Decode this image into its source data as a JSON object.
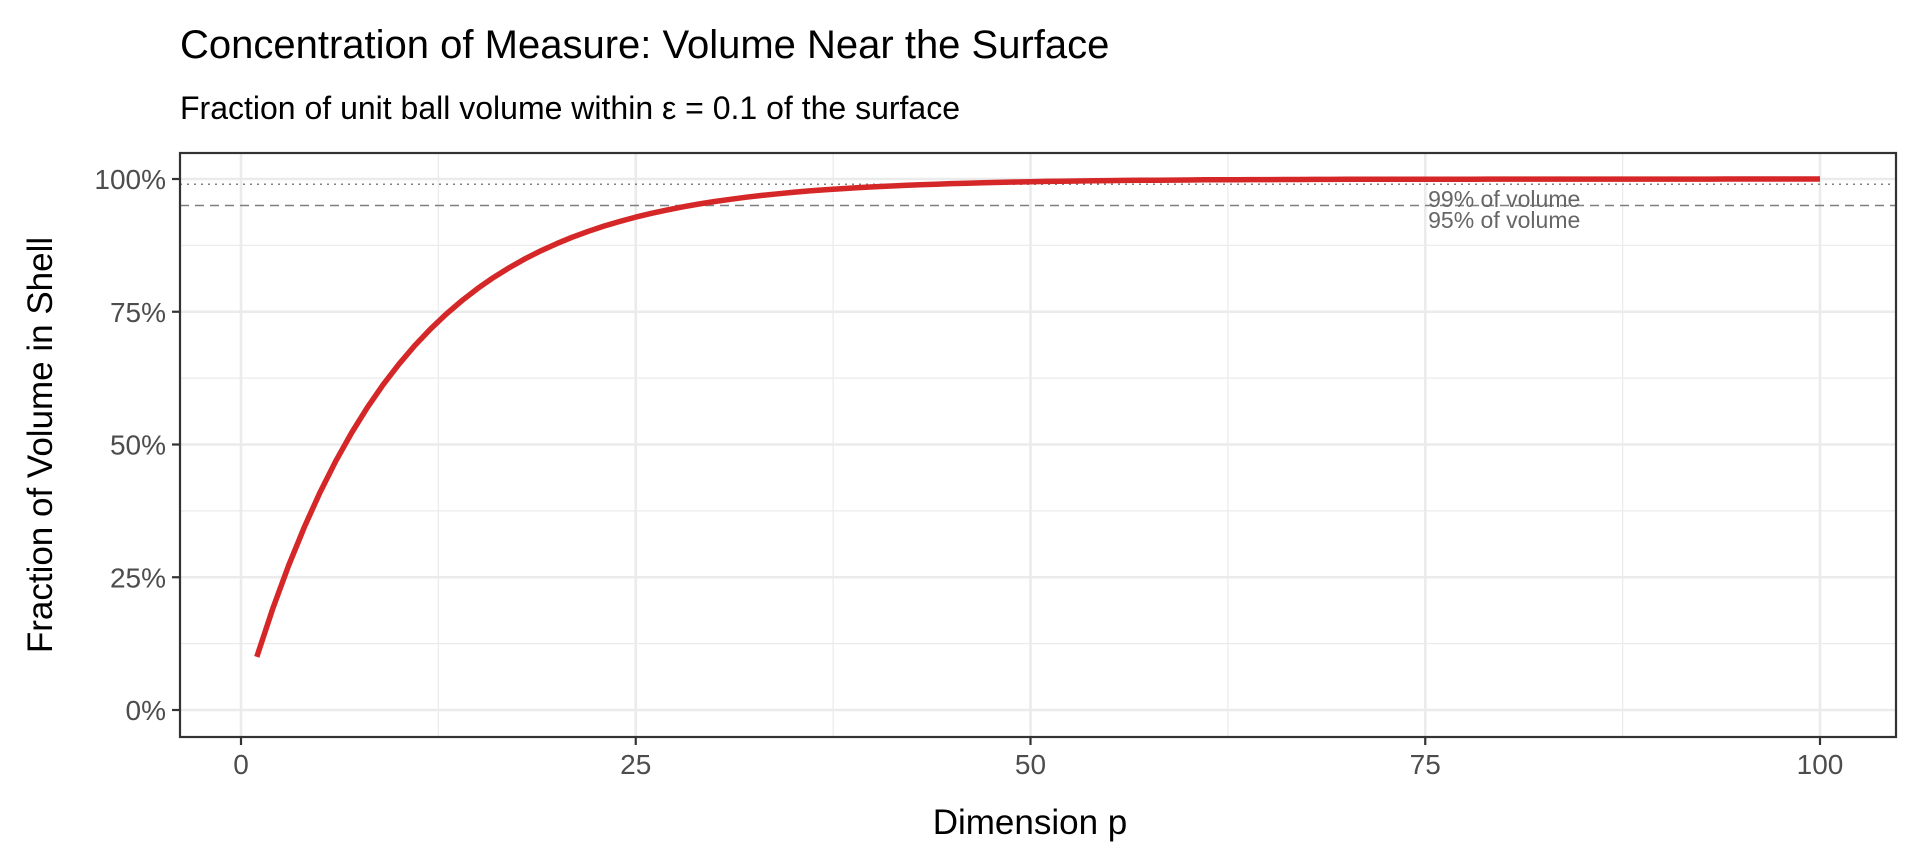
{
  "chart_data": {
    "type": "line",
    "title": "Concentration of Measure: Volume Near the Surface",
    "subtitle": "Fraction of unit ball volume within ε = 0.1 of the surface",
    "xlabel": "Dimension p",
    "ylabel": "Fraction of Volume in Shell",
    "xlim": [
      -4.95,
      105
    ],
    "ylim": [
      -0.05,
      1.05
    ],
    "x_ticks": [
      0,
      25,
      50,
      75,
      100
    ],
    "x_tick_labels": [
      "0",
      "25",
      "50",
      "75",
      "100"
    ],
    "y_ticks": [
      0,
      0.25,
      0.5,
      0.75,
      1.0
    ],
    "y_tick_labels": [
      "0%",
      "25%",
      "50%",
      "75%",
      "100%"
    ],
    "grid": true,
    "series": [
      {
        "name": "shell fraction",
        "color": "#d62728",
        "x_start": 1,
        "x_step": 1,
        "values": [
          0.1,
          0.19,
          0.271,
          0.3439,
          0.4095,
          0.4686,
          0.5217,
          0.5695,
          0.6126,
          0.6513,
          0.6862,
          0.7176,
          0.7458,
          0.7712,
          0.7941,
          0.8147,
          0.8332,
          0.8499,
          0.8649,
          0.8784,
          0.8906,
          0.9015,
          0.9114,
          0.9202,
          0.9282,
          0.9354,
          0.9419,
          0.9477,
          0.9529,
          0.9576,
          0.9618,
          0.9657,
          0.9691,
          0.9722,
          0.975,
          0.9775,
          0.9797,
          0.9818,
          0.9836,
          0.9852,
          0.9867,
          0.988,
          0.9892,
          0.9903,
          0.9913,
          0.9921,
          0.9929,
          0.9936,
          0.9943,
          0.9948,
          0.9954,
          0.9958,
          0.9962,
          0.9966,
          0.997,
          0.9973,
          0.9975,
          0.9978,
          0.998,
          0.9982,
          0.9984,
          0.9985,
          0.9987,
          0.9988,
          0.9989,
          0.999,
          0.9991,
          0.9992,
          0.9993,
          0.9994,
          0.9994,
          0.9995,
          0.9995,
          0.9996,
          0.9996,
          0.9997,
          0.9997,
          0.9997,
          0.9998,
          0.9998,
          0.9998,
          0.9998,
          0.9998,
          0.9999,
          0.9999,
          0.9999,
          0.9999,
          0.9999,
          0.9999,
          0.9999,
          0.9999,
          0.9999,
          0.9999,
          1.0,
          1.0,
          1.0,
          1.0,
          1.0,
          1.0,
          1.0
        ]
      }
    ],
    "reference_lines": [
      {
        "y": 0.99,
        "style": "dotted",
        "label": "99% of volume",
        "label_x": 80
      },
      {
        "y": 0.95,
        "style": "dashed",
        "label": "95% of volume",
        "label_x": 80
      }
    ]
  }
}
